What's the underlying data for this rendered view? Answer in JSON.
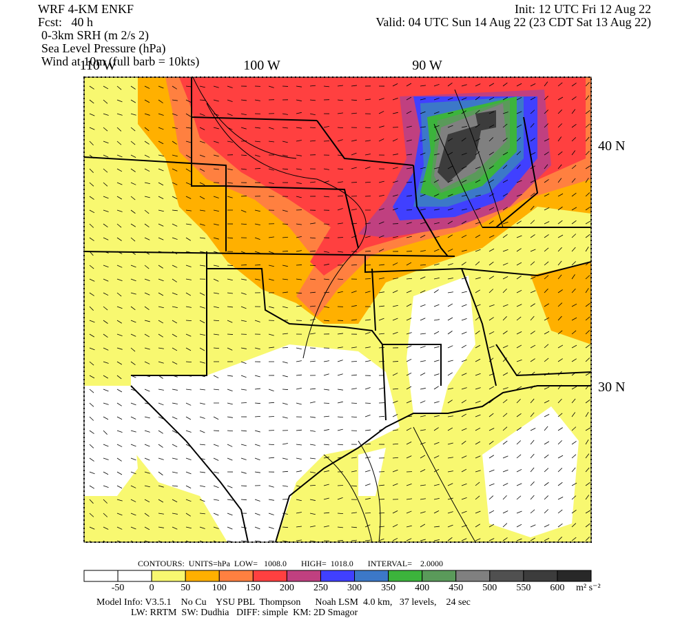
{
  "header": {
    "model": "WRF 4-KM ENKF",
    "forecast": "Fcst:   40 h",
    "init": "Init: 12 UTC Fri 12 Aug 22",
    "valid": "Valid: 04 UTC Sun 14 Aug 22 (23 CDT Sat 13 Aug 22)",
    "fields": [
      "0-3km SRH (m 2/s 2)",
      "Sea Level Pressure (hPa)",
      "Wind at 10m (full barb = 10kts)"
    ]
  },
  "map": {
    "longitude_labels": [
      "110 W",
      "100 W",
      "90 W"
    ],
    "latitude_labels": [
      "40 N",
      "30 N"
    ]
  },
  "contours": "CONTOURS:  UNITS=hPa  LOW=   1008.0       HIGH=  1018.0       INTERVAL=    2.0000",
  "colorbar": {
    "colors": [
      "#ffffff",
      "#ffffff",
      "#f8f870",
      "#ffb000",
      "#ff8040",
      "#ff4040",
      "#c04080",
      "#4040ff",
      "#3c78c8",
      "#3cb43c",
      "#5a9a5a",
      "#808080",
      "#505050",
      "#3c3c3c",
      "#282828"
    ],
    "levels": [
      -50,
      0,
      50,
      100,
      150,
      200,
      250,
      300,
      350,
      400,
      450,
      500,
      550,
      600
    ],
    "units": "m² s⁻²"
  },
  "footer": [
    "Model Info: V3.5.1    No Cu    YSU PBL  Thompson      Noah LSM  4.0 km,   37 levels,    24 sec",
    "LW: RRTM  SW: Dudhia   DIFF: simple  KM: 2D Smagor"
  ]
}
